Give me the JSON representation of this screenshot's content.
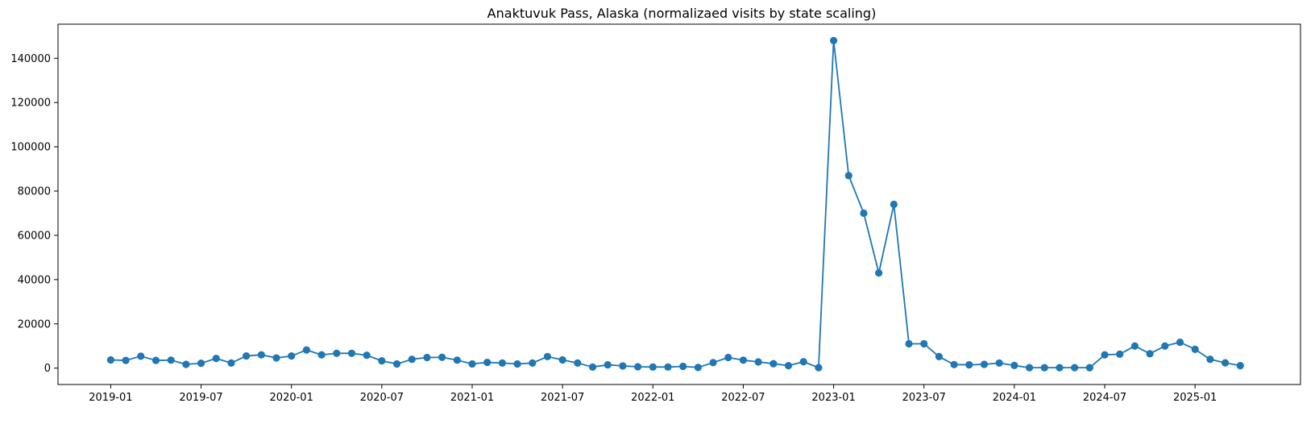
{
  "chart_data": {
    "type": "line",
    "title": "Anaktuvuk Pass, Alaska (normalizaed visits by state scaling)",
    "xlabel": "",
    "ylabel": "",
    "grid": false,
    "marker": "circle",
    "color": "#1f77b4",
    "x_start": "2019-01",
    "x_range_months": [
      -3.5,
      79
    ],
    "ylim": [
      -7400,
      155400
    ],
    "x_ticks": [
      {
        "label": "2019-01",
        "month_index": 0
      },
      {
        "label": "2019-07",
        "month_index": 6
      },
      {
        "label": "2020-01",
        "month_index": 12
      },
      {
        "label": "2020-07",
        "month_index": 18
      },
      {
        "label": "2021-01",
        "month_index": 24
      },
      {
        "label": "2021-07",
        "month_index": 30
      },
      {
        "label": "2022-01",
        "month_index": 36
      },
      {
        "label": "2022-07",
        "month_index": 42
      },
      {
        "label": "2023-01",
        "month_index": 48
      },
      {
        "label": "2023-07",
        "month_index": 54
      },
      {
        "label": "2024-01",
        "month_index": 60
      },
      {
        "label": "2024-07",
        "month_index": 66
      },
      {
        "label": "2025-01",
        "month_index": 72
      }
    ],
    "y_ticks": [
      "0",
      "20000",
      "40000",
      "60000",
      "80000",
      "100000",
      "120000",
      "140000"
    ],
    "y_tick_values": [
      0,
      20000,
      40000,
      60000,
      80000,
      100000,
      120000,
      140000
    ],
    "series": [
      {
        "name": "visits",
        "values": [
          3700,
          3500,
          5400,
          3500,
          3600,
          1700,
          2200,
          4400,
          2300,
          5500,
          6000,
          4600,
          5500,
          8200,
          6000,
          6700,
          6700,
          5800,
          3300,
          1900,
          4000,
          4800,
          4900,
          3600,
          1900,
          2600,
          2300,
          1900,
          2300,
          5200,
          3700,
          2300,
          500,
          1500,
          1000,
          600,
          500,
          500,
          800,
          300,
          2500,
          4800,
          3600,
          2800,
          2000,
          1100,
          2900,
          200,
          148000,
          87000,
          70000,
          43000,
          74000,
          11000,
          11000,
          5200,
          1600,
          1500,
          1700,
          2300,
          1200,
          200,
          200,
          200,
          200,
          200,
          6000,
          6300,
          10000,
          6500,
          10000,
          11700,
          8500,
          4000,
          2400,
          1100
        ]
      }
    ]
  }
}
